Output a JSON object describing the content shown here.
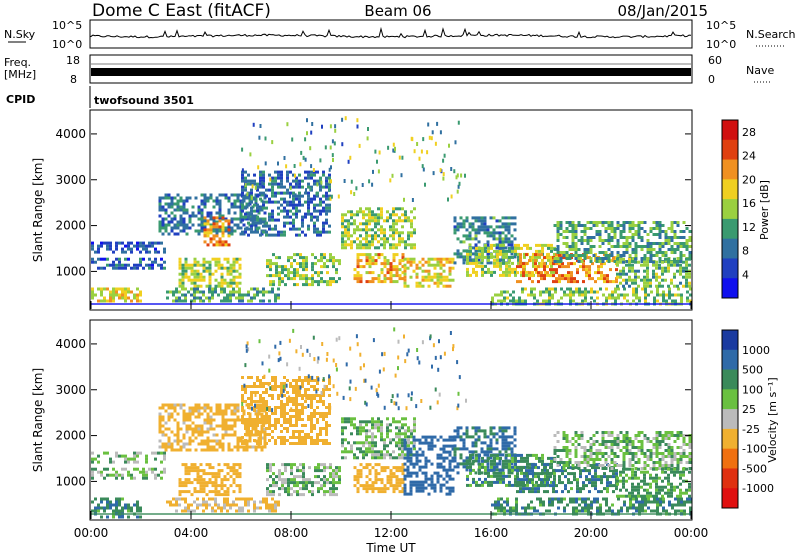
{
  "header": {
    "station": "Dome C East (fitACF)",
    "beam": "Beam 06",
    "date": "08/Jan/2015"
  },
  "top_panels": {
    "nsky_label": "N.Sky",
    "nsky_ticks": [
      "10^5",
      "10^0"
    ],
    "nsearch_label": "N.Search",
    "nsearch_ticks": [
      "10^5",
      "10^0"
    ],
    "freq_label": "Freq.",
    "freq_unit": "[MHz]",
    "freq_ticks": [
      "18",
      "8"
    ],
    "nave_label": "Nave",
    "nave_ticks": [
      "60",
      "0"
    ],
    "cpid_label": "CPID",
    "cpid_value": "twofsound 3501"
  },
  "x_axis": {
    "title": "Time UT",
    "ticks": [
      "00:00",
      "04:00",
      "08:00",
      "12:00",
      "16:00",
      "20:00",
      "00:00"
    ]
  },
  "colors": {
    "power": [
      "#1010ee",
      "#2040c0",
      "#3070a0",
      "#3a9a70",
      "#9ad040",
      "#f0d020",
      "#f09020",
      "#e04010",
      "#d01010"
    ],
    "velocity": [
      "#1a3aa0",
      "#2f6aa8",
      "#3a8a5a",
      "#6ac040",
      "#bbbbbb",
      "#f0b030",
      "#f07010",
      "#e03010",
      "#e01010"
    ]
  },
  "chart_data": [
    {
      "type": "heatmap",
      "quantity": "Power",
      "xlabel": "",
      "ylabel": "Slant Range [km]",
      "xlim_hours": [
        0,
        24
      ],
      "ylim_km": [
        180,
        4500
      ],
      "y_ticks": [
        "1000",
        "2000",
        "3000",
        "4000"
      ],
      "colorbar": {
        "label": "Power [dB]",
        "ticks": [
          "4",
          "8",
          "12",
          "16",
          "20",
          "24",
          "28"
        ],
        "range": [
          0,
          30
        ]
      },
      "bands": [
        {
          "t0": 0.0,
          "t1": 3.0,
          "r0": 1450,
          "r1": 1650,
          "value": 6
        },
        {
          "t0": 0.0,
          "t1": 3.0,
          "r0": 1100,
          "r1": 1300,
          "value": 7
        },
        {
          "t0": 0.0,
          "t1": 2.0,
          "r0": 350,
          "r1": 650,
          "value": 18
        },
        {
          "t0": 2.7,
          "t1": 7.0,
          "r0": 1800,
          "r1": 2700,
          "value": 9
        },
        {
          "t0": 3.5,
          "t1": 6.0,
          "r0": 700,
          "r1": 1300,
          "value": 16
        },
        {
          "t0": 4.5,
          "t1": 5.5,
          "r0": 1600,
          "r1": 2200,
          "value": 22
        },
        {
          "t0": 3.0,
          "t1": 7.5,
          "r0": 350,
          "r1": 650,
          "value": 12
        },
        {
          "t0": 6.0,
          "t1": 9.5,
          "r0": 1800,
          "r1": 3200,
          "value": 8
        },
        {
          "t0": 7.0,
          "t1": 10.0,
          "r0": 700,
          "r1": 1400,
          "value": 14
        },
        {
          "t0": 10.0,
          "t1": 13.0,
          "r0": 1500,
          "r1": 2400,
          "value": 15
        },
        {
          "t0": 10.5,
          "t1": 12.5,
          "r0": 800,
          "r1": 1400,
          "value": 20
        },
        {
          "t0": 12.5,
          "t1": 14.5,
          "r0": 700,
          "r1": 1300,
          "value": 18
        },
        {
          "t0": 14.5,
          "t1": 17.0,
          "r0": 1200,
          "r1": 2200,
          "value": 10
        },
        {
          "t0": 15.0,
          "t1": 18.5,
          "r0": 900,
          "r1": 1600,
          "value": 16
        },
        {
          "t0": 17.0,
          "t1": 21.0,
          "r0": 800,
          "r1": 1400,
          "value": 22
        },
        {
          "t0": 18.5,
          "t1": 24.0,
          "r0": 1200,
          "r1": 2100,
          "value": 12
        },
        {
          "t0": 16.0,
          "t1": 24.0,
          "r0": 300,
          "r1": 650,
          "value": 14
        },
        {
          "t0": 21.0,
          "t1": 24.0,
          "r0": 700,
          "r1": 1300,
          "value": 13
        }
      ]
    },
    {
      "type": "heatmap",
      "quantity": "Velocity",
      "xlabel": "Time UT",
      "ylabel": "Slant Range [km]",
      "xlim_hours": [
        0,
        24
      ],
      "ylim_km": [
        180,
        4500
      ],
      "y_ticks": [
        "1000",
        "2000",
        "3000",
        "4000"
      ],
      "colorbar": {
        "label": "Velocity [m s⁻¹]",
        "ticks": [
          "1000",
          "500",
          "100",
          "25",
          "-25",
          "-100",
          "-500",
          "-1000"
        ]
      },
      "bands": [
        {
          "t0": 0.0,
          "t1": 3.0,
          "r0": 1450,
          "r1": 1650,
          "value": 0
        },
        {
          "t0": 0.0,
          "t1": 3.0,
          "r0": 1100,
          "r1": 1300,
          "value": 0
        },
        {
          "t0": 0.0,
          "t1": 2.0,
          "r0": 250,
          "r1": 650,
          "value": 80
        },
        {
          "t0": 2.7,
          "t1": 7.0,
          "r0": 1700,
          "r1": 2700,
          "value": -150
        },
        {
          "t0": 3.5,
          "t1": 6.0,
          "r0": 700,
          "r1": 1400,
          "value": -200
        },
        {
          "t0": 3.0,
          "t1": 7.5,
          "r0": 350,
          "r1": 650,
          "value": -120
        },
        {
          "t0": 6.0,
          "t1": 9.5,
          "r0": 1800,
          "r1": 3300,
          "value": -180
        },
        {
          "t0": 7.0,
          "t1": 10.0,
          "r0": 700,
          "r1": 1400,
          "value": 0
        },
        {
          "t0": 10.0,
          "t1": 13.0,
          "r0": 1500,
          "r1": 2400,
          "value": 10
        },
        {
          "t0": 10.5,
          "t1": 12.5,
          "r0": 800,
          "r1": 1400,
          "value": -300
        },
        {
          "t0": 12.5,
          "t1": 14.5,
          "r0": 700,
          "r1": 2000,
          "value": 400
        },
        {
          "t0": 14.5,
          "t1": 17.0,
          "r0": 1200,
          "r1": 2200,
          "value": 120
        },
        {
          "t0": 15.0,
          "t1": 18.5,
          "r0": 900,
          "r1": 1600,
          "value": 60
        },
        {
          "t0": 17.0,
          "t1": 21.0,
          "r0": 800,
          "r1": 1400,
          "value": 80
        },
        {
          "t0": 18.5,
          "t1": 24.0,
          "r0": 1300,
          "r1": 2100,
          "value": 0
        },
        {
          "t0": 16.0,
          "t1": 24.0,
          "r0": 300,
          "r1": 650,
          "value": 70
        },
        {
          "t0": 21.0,
          "t1": 24.0,
          "r0": 700,
          "r1": 1300,
          "value": 40
        }
      ]
    }
  ]
}
